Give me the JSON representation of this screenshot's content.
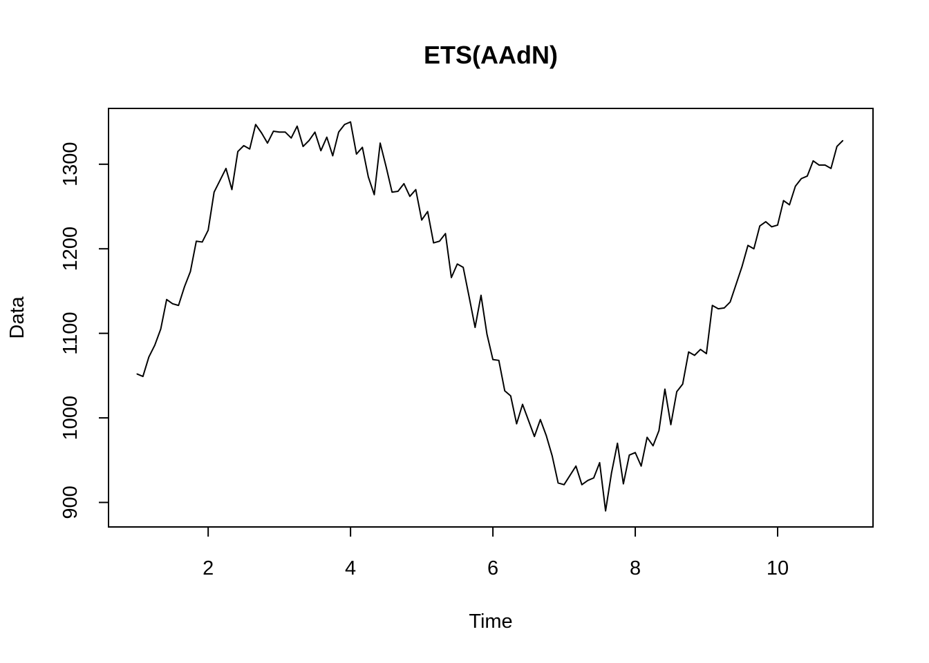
{
  "chart_data": {
    "type": "line",
    "title": "ETS(AAdN)",
    "xlabel": "Time",
    "ylabel": "Data",
    "xlim": [
      0.6,
      11.34
    ],
    "ylim": [
      871,
      1366
    ],
    "x_ticks": [
      2,
      4,
      6,
      8,
      10
    ],
    "y_ticks": [
      900,
      1000,
      1100,
      1200,
      1300
    ],
    "grid": false,
    "legend": "none",
    "x_start": 1.0,
    "x_step": 0.08333,
    "series": [
      {
        "values": [
          1052,
          1049,
          1072,
          1086,
          1105,
          1140,
          1135,
          1133,
          1155,
          1173,
          1209,
          1208,
          1222,
          1267,
          1281,
          1295,
          1270,
          1315,
          1322,
          1318,
          1347,
          1337,
          1325,
          1339,
          1338,
          1338,
          1331,
          1345,
          1321,
          1328,
          1338,
          1316,
          1332,
          1310,
          1338,
          1347,
          1350,
          1312,
          1320,
          1285,
          1264,
          1325,
          1297,
          1267,
          1268,
          1277,
          1262,
          1270,
          1234,
          1244,
          1207,
          1209,
          1218,
          1166,
          1182,
          1178,
          1143,
          1107,
          1145,
          1099,
          1069,
          1068,
          1032,
          1026,
          993,
          1016,
          997,
          978,
          998,
          979,
          955,
          923,
          921,
          932,
          943,
          921,
          926,
          929,
          947,
          890,
          935,
          970,
          922,
          956,
          959,
          943,
          977,
          967,
          985,
          1034,
          992,
          1031,
          1040,
          1078,
          1074,
          1081,
          1076,
          1133,
          1129,
          1130,
          1137,
          1158,
          1179,
          1204,
          1200,
          1227,
          1232,
          1226,
          1228,
          1257,
          1252,
          1274,
          1283,
          1286,
          1304,
          1299,
          1299,
          1295,
          1321,
          1328
        ]
      }
    ]
  }
}
